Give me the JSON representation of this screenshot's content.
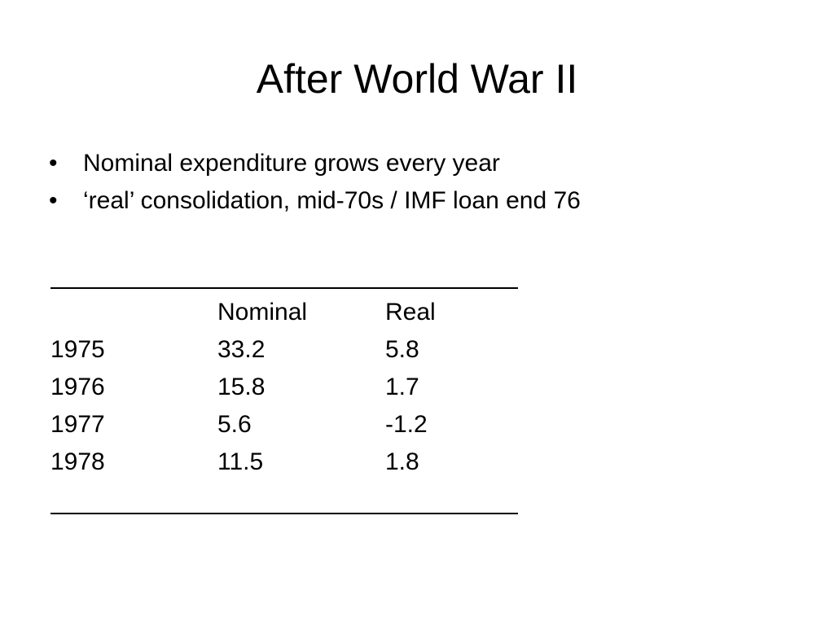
{
  "slide": {
    "title": "After World War II",
    "bullets": [
      {
        "marker": "•",
        "text": "Nominal expenditure grows every year"
      },
      {
        "marker": "•",
        "text": "‘real’ consolidation, mid-70s / IMF loan end 76"
      }
    ],
    "table": {
      "headers": {
        "year": "",
        "nominal": "Nominal",
        "real": "Real"
      },
      "rows": [
        {
          "year": "1975",
          "nominal": "33.2",
          "real": "5.8"
        },
        {
          "year": "1976",
          "nominal": "15.8",
          "real": "1.7"
        },
        {
          "year": "1977",
          "nominal": "5.6",
          "real": "-1.2"
        },
        {
          "year": "1978",
          "nominal": "11.5",
          "real": "1.8"
        }
      ]
    }
  }
}
